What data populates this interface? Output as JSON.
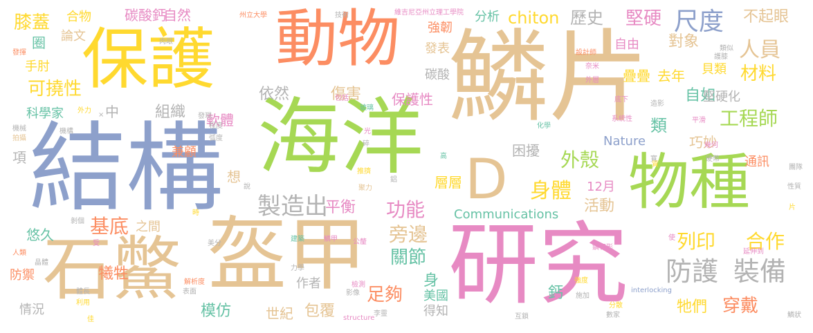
{
  "colors": {
    "pink": "#e78ac3",
    "orange": "#fc8d62",
    "green": "#a6d854",
    "yellow": "#ffd92f",
    "tan": "#e5c494",
    "teal": "#66c2a5",
    "blue": "#8da0cb",
    "gray": "#b3b3b3"
  },
  "words": [
    {
      "text": "鱗片",
      "color": "tan"
    },
    {
      "text": "結構",
      "color": "blue"
    },
    {
      "text": "海洋",
      "color": "green"
    },
    {
      "text": "研究",
      "color": "pink"
    },
    {
      "text": "盔甲",
      "color": "tan"
    },
    {
      "text": "石鱉",
      "color": "tan"
    },
    {
      "text": "保護",
      "color": "yellow"
    },
    {
      "text": "動物",
      "color": "orange"
    },
    {
      "text": "物種",
      "color": "green"
    },
    {
      "text": "D",
      "color": "tan"
    },
    {
      "text": "防護",
      "color": "gray"
    },
    {
      "text": "裝備",
      "color": "gray"
    },
    {
      "text": "製造出",
      "color": "gray"
    },
    {
      "text": "尺度",
      "color": "blue"
    },
    {
      "text": "身體",
      "color": "yellow"
    },
    {
      "text": "功能",
      "color": "pink"
    },
    {
      "text": "基底",
      "color": "orange"
    },
    {
      "text": "工程師",
      "color": "green"
    },
    {
      "text": "外殼",
      "color": "green"
    },
    {
      "text": "旁邊",
      "color": "tan"
    },
    {
      "text": "列印",
      "color": "yellow"
    },
    {
      "text": "合作",
      "color": "yellow"
    },
    {
      "text": "可撓性",
      "color": "yellow"
    },
    {
      "text": "人員",
      "color": "tan"
    },
    {
      "text": "膝蓋",
      "color": "yellow"
    },
    {
      "text": "chiton",
      "color": "yellow"
    },
    {
      "text": "堅硬",
      "color": "pink"
    },
    {
      "text": "穿戴",
      "color": "orange"
    },
    {
      "text": "材料",
      "color": "yellow"
    },
    {
      "text": "平衡",
      "color": "pink"
    },
    {
      "text": "足夠",
      "color": "orange"
    },
    {
      "text": "關節",
      "color": "teal"
    },
    {
      "text": "歷史",
      "color": "gray"
    },
    {
      "text": "不起眼",
      "color": "tan"
    },
    {
      "text": "傷害",
      "color": "tan"
    },
    {
      "text": "組織",
      "color": "gray"
    },
    {
      "text": "對象",
      "color": "tan"
    },
    {
      "text": "牠們",
      "color": "yellow"
    },
    {
      "text": "保護性",
      "color": "pink"
    },
    {
      "text": "包覆",
      "color": "tan"
    },
    {
      "text": "模仿",
      "color": "teal"
    },
    {
      "text": "世紀",
      "color": "tan"
    },
    {
      "text": "悠久",
      "color": "teal"
    },
    {
      "text": "犧牲",
      "color": "orange"
    },
    {
      "text": "防禦",
      "color": "orange"
    },
    {
      "text": "自如",
      "color": "teal"
    },
    {
      "text": "碳酸鈣",
      "color": "pink"
    },
    {
      "text": "自然",
      "color": "pink"
    },
    {
      "text": "依然",
      "color": "gray"
    },
    {
      "text": "巧妙",
      "color": "tan"
    },
    {
      "text": "軟體",
      "color": "pink"
    },
    {
      "text": "困擾",
      "color": "gray"
    },
    {
      "text": "活動",
      "color": "tan"
    },
    {
      "text": "層層",
      "color": "yellow"
    },
    {
      "text": "疊疊",
      "color": "yellow"
    },
    {
      "text": "去年",
      "color": "yellow"
    },
    {
      "text": "作者",
      "color": "gray"
    },
    {
      "text": "兼顧",
      "color": "orange"
    },
    {
      "text": "之間",
      "color": "tan"
    },
    {
      "text": "貝類",
      "color": "yellow"
    },
    {
      "text": "自由",
      "color": "pink"
    },
    {
      "text": "堅硬化",
      "color": "gray"
    },
    {
      "text": "通訊",
      "color": "orange"
    },
    {
      "text": "情況",
      "color": "gray"
    },
    {
      "text": "美國",
      "color": "teal"
    },
    {
      "text": "得知",
      "color": "gray"
    },
    {
      "text": "發表",
      "color": "tan"
    },
    {
      "text": "強韌",
      "color": "orange"
    },
    {
      "text": "分析",
      "color": "teal"
    },
    {
      "text": "碳酸",
      "color": "gray"
    },
    {
      "text": "科學家",
      "color": "teal"
    },
    {
      "text": "手肘",
      "color": "yellow"
    },
    {
      "text": "論文",
      "color": "tan"
    },
    {
      "text": "合物",
      "color": "yellow"
    },
    {
      "text": "圈",
      "color": "teal"
    },
    {
      "text": "中",
      "color": "gray"
    },
    {
      "text": "類",
      "color": "teal"
    },
    {
      "text": "身",
      "color": "teal"
    },
    {
      "text": "鈣",
      "color": "teal"
    },
    {
      "text": "項",
      "color": "gray"
    },
    {
      "text": "想",
      "color": "tan"
    },
    {
      "text": "12月",
      "color": "pink"
    },
    {
      "text": "Nature",
      "color": "blue"
    },
    {
      "text": "Communications",
      "color": "teal"
    },
    {
      "text": "維吉尼亞州立理工學院",
      "color": "pink"
    },
    {
      "text": "州立大學",
      "color": "orange"
    },
    {
      "text": "技術",
      "color": "gray"
    },
    {
      "text": "設計師",
      "color": "orange"
    },
    {
      "text": "類似",
      "color": "gray"
    },
    {
      "text": "護膝",
      "color": "gray"
    },
    {
      "text": "奈米",
      "color": "pink"
    },
    {
      "text": "外層",
      "color": "pink"
    },
    {
      "text": "發揮",
      "color": "orange"
    },
    {
      "text": "肉眼",
      "color": "gray"
    },
    {
      "text": "機械",
      "color": "gray"
    },
    {
      "text": "拍攝",
      "color": "tan"
    },
    {
      "text": "機構",
      "color": "gray"
    },
    {
      "text": "外力",
      "color": "yellow"
    },
    {
      "text": "發現",
      "color": "gray"
    },
    {
      "text": "弧度",
      "color": "gray"
    },
    {
      "text": "程度",
      "color": "gray"
    },
    {
      "text": "包括",
      "color": "pink"
    },
    {
      "text": "玻璃",
      "color": "teal"
    },
    {
      "text": "光",
      "color": "pink"
    },
    {
      "text": "碎",
      "color": "gray"
    },
    {
      "text": "推擠",
      "color": "yellow"
    },
    {
      "text": "高",
      "color": "teal"
    },
    {
      "text": "聚力",
      "color": "tan"
    },
    {
      "text": "化學",
      "color": "teal"
    },
    {
      "text": "系統性",
      "color": "pink"
    },
    {
      "text": "底下",
      "color": "pink"
    },
    {
      "text": "造影",
      "color": "gray"
    },
    {
      "text": "平滑",
      "color": "pink"
    },
    {
      "text": "幾何",
      "color": "pink"
    },
    {
      "text": "寬",
      "color": "gray"
    },
    {
      "text": "硬幣",
      "color": "gray"
    },
    {
      "text": "團隊",
      "color": "gray"
    },
    {
      "text": "性質",
      "color": "gray"
    },
    {
      "text": "片",
      "color": "yellow"
    },
    {
      "text": "剝個",
      "color": "gray"
    },
    {
      "text": "受",
      "color": "pink"
    },
    {
      "text": "人類",
      "color": "orange"
    },
    {
      "text": "美分",
      "color": "gray"
    },
    {
      "text": "建築",
      "color": "teal"
    },
    {
      "text": "鱗甲",
      "color": "pink"
    },
    {
      "text": "公釐",
      "color": "pink"
    },
    {
      "text": "鑽石形",
      "color": "pink"
    },
    {
      "text": "延伸到",
      "color": "pink"
    },
    {
      "text": "晶體",
      "color": "gray"
    },
    {
      "text": "力學",
      "color": "gray"
    },
    {
      "text": "解析度",
      "color": "orange"
    },
    {
      "text": "檢測",
      "color": "pink"
    },
    {
      "text": "表面",
      "color": "gray"
    },
    {
      "text": "影像",
      "color": "gray"
    },
    {
      "text": "強度",
      "color": "yellow"
    },
    {
      "text": "施加",
      "color": "gray"
    },
    {
      "text": "interlocking",
      "color": "blue"
    },
    {
      "text": "體長",
      "color": "gray"
    },
    {
      "text": "利用",
      "color": "yellow"
    },
    {
      "text": "佳",
      "color": "yellow"
    },
    {
      "text": "structure",
      "color": "pink"
    },
    {
      "text": "李靈",
      "color": "gray"
    },
    {
      "text": "互鎖",
      "color": "gray"
    },
    {
      "text": "分散",
      "color": "yellow"
    },
    {
      "text": "數家",
      "color": "gray"
    },
    {
      "text": "鱗狀",
      "color": "gray"
    },
    {
      "text": "時",
      "color": "yellow"
    },
    {
      "text": "使",
      "color": "pink"
    },
    {
      "text": "說",
      "color": "gray"
    },
    {
      "text": "質",
      "color": "yellow"
    },
    {
      "text": "×",
      "color": "gray"
    },
    {
      "text": "鋁",
      "color": "gray"
    }
  ]
}
